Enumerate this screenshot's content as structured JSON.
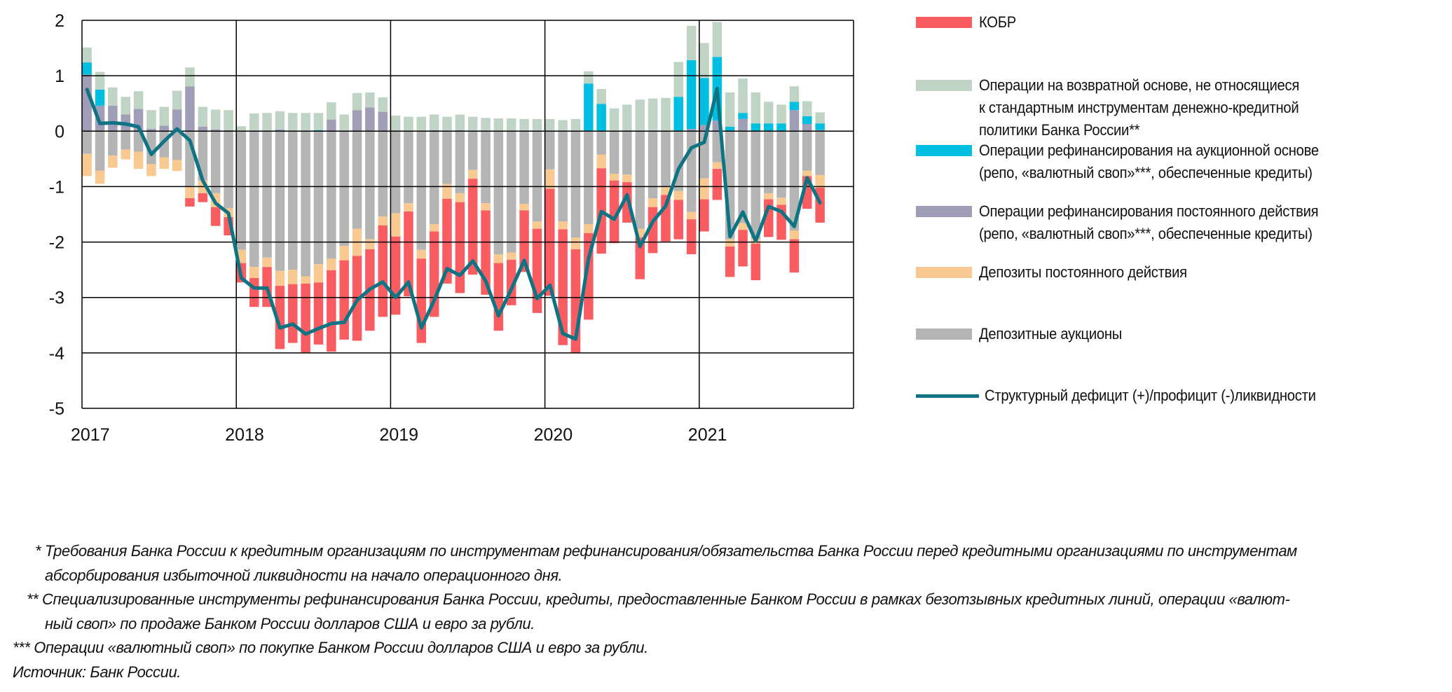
{
  "chart_data": {
    "type": "bar",
    "stacked": true,
    "title": "",
    "xlabel": "",
    "ylabel": "",
    "ylim": [
      -5,
      2
    ],
    "yticks": [
      "2",
      "1",
      "0",
      "-1",
      "-2",
      "-3",
      "-4",
      "-5"
    ],
    "ytick_values": [
      2,
      1,
      0,
      -1,
      -2,
      -3,
      -4,
      -5
    ],
    "xticks": [
      "2017",
      "2018",
      "2019",
      "2020",
      "2021"
    ],
    "grid": "horizontal and year separators",
    "legend_position": "right",
    "period": "monthly, Jan 2017 - Oct 2021",
    "series": [
      {
        "name": "КОБР",
        "color": "#f95c61",
        "kind": "bar-negative",
        "values": [
          0,
          0,
          0,
          0,
          0,
          0,
          0,
          0,
          -0.15,
          -0.16,
          -0.34,
          -0.33,
          -0.35,
          -0.52,
          -0.72,
          -1.14,
          -1.06,
          -1.24,
          -1.12,
          -1.47,
          -1.43,
          -1.53,
          -1.47,
          -1.65,
          -1.41,
          -1.53,
          -1.52,
          -1.54,
          -1.53,
          -1.64,
          -1.73,
          -1.52,
          -1.22,
          -0.82,
          -1.11,
          -1.52,
          -1.93,
          -2.09,
          -1.87,
          -1.56,
          -1.54,
          -1.13,
          -0.73,
          -0.75,
          -0.83,
          -0.84,
          -0.71,
          -0.63,
          -0.58,
          -0.56,
          -0.55,
          -0.66,
          -0.66,
          -0.68,
          -0.63,
          -0.6,
          -0.59,
          -0.63
        ]
      },
      {
        "name": "Депозиты постоянного действия",
        "color": "#f8c990",
        "kind": "bar-negative",
        "values": [
          -0.4,
          -0.24,
          -0.22,
          -0.18,
          -0.31,
          -0.22,
          -0.21,
          -0.2,
          -0.2,
          -0.23,
          -0.25,
          -0.16,
          -0.24,
          -0.2,
          -0.17,
          -0.27,
          -0.26,
          -0.13,
          -0.33,
          -0.21,
          -0.26,
          -0.49,
          -0.18,
          -0.16,
          -0.42,
          -0.15,
          -0.16,
          -0.13,
          -0.27,
          -0.16,
          -0.16,
          -0.13,
          -0.16,
          -0.13,
          -0.12,
          -0.13,
          -0.35,
          -0.14,
          -0.21,
          -0.16,
          -0.25,
          -0.12,
          -0.14,
          -0.16,
          -0.16,
          -0.15,
          -0.16,
          -0.13,
          -0.38,
          -0.12,
          -0.13,
          -0.12,
          -0.09,
          -0.11,
          -0.13,
          -0.16,
          -0.1,
          -0.23
        ]
      },
      {
        "name": "Депозитные аукционы",
        "color": "#b4b4b4",
        "kind": "bar-negative",
        "values": [
          -0.41,
          -0.71,
          -0.44,
          -0.33,
          -0.37,
          -0.59,
          -0.47,
          -0.52,
          -1.01,
          -0.89,
          -1.12,
          -1.39,
          -2.14,
          -2.45,
          -2.28,
          -2.52,
          -2.5,
          -2.62,
          -2.4,
          -2.3,
          -2.07,
          -1.76,
          -1.95,
          -1.54,
          -1.48,
          -1.3,
          -2.14,
          -1.68,
          -0.95,
          -1.12,
          -0.7,
          -1.3,
          -2.22,
          -2.19,
          -1.31,
          -1.63,
          -0.69,
          -1.63,
          -1.92,
          -1.68,
          -0.42,
          -0.77,
          -0.78,
          -1.76,
          -1.21,
          -1.0,
          -1.08,
          -1.46,
          -0.85,
          -0.56,
          -1.95,
          -1.66,
          -1.94,
          -1.12,
          -1.2,
          -1.79,
          -0.71,
          -0.79
        ]
      },
      {
        "name": "Операции рефинансирования постоянного действия (репо, «валютный своп»***, обеспеченные кредиты)",
        "color": "#a09db7",
        "kind": "bar-positive",
        "values": [
          1.02,
          0.46,
          0.46,
          0.3,
          0.4,
          0.04,
          0.1,
          0.39,
          0.81,
          0.08,
          0.03,
          0.02,
          0.01,
          0.01,
          0.01,
          0.03,
          0.01,
          0.01,
          0.0,
          0.21,
          0.01,
          0.38,
          0.43,
          0.35,
          0.01,
          0.01,
          0.01,
          0.02,
          0.01,
          0.02,
          0.01,
          0.01,
          0.01,
          0.01,
          0.01,
          0.01,
          0.01,
          0.01,
          0.01,
          0.0,
          0.0,
          0.01,
          0.01,
          0.01,
          0.01,
          0.01,
          0.0,
          0.04,
          0.11,
          0.19,
          0.0,
          0.22,
          0.0,
          0.0,
          0.0,
          0.38,
          0.13,
          0.02
        ]
      },
      {
        "name": "Операции рефинансирования на аукционной основе (репо, «валютный своп»***, обеспеченные кредиты)",
        "color": "#00bfe0",
        "kind": "bar-positive",
        "values": [
          0.22,
          0.29,
          0,
          0,
          0,
          0,
          0,
          0,
          0,
          0,
          0,
          0,
          0,
          0,
          0,
          0,
          0,
          0,
          0.02,
          0,
          0,
          0,
          0,
          0,
          0,
          0,
          0,
          0,
          0,
          0,
          0,
          0,
          0,
          0,
          0,
          0,
          0,
          0,
          0,
          0.86,
          0.49,
          0,
          0,
          0,
          0,
          0,
          0.62,
          1.24,
          0.85,
          1.15,
          0.08,
          0.11,
          0.14,
          0.14,
          0.14,
          0.15,
          0.14,
          0.12
        ]
      },
      {
        "name": "Операции на возвратной основе, не относящиеся к стандартным инструментам денежно-кредитной политики Банка России**",
        "color": "#bfd4c5",
        "kind": "bar-positive",
        "values": [
          0.27,
          0.32,
          0.33,
          0.32,
          0.32,
          0.34,
          0.34,
          0.34,
          0.34,
          0.36,
          0.36,
          0.36,
          0.08,
          0.31,
          0.32,
          0.33,
          0.32,
          0.32,
          0.31,
          0.31,
          0.29,
          0.31,
          0.27,
          0.26,
          0.27,
          0.25,
          0.25,
          0.28,
          0.25,
          0.28,
          0.25,
          0.23,
          0.22,
          0.22,
          0.21,
          0.21,
          0.21,
          0.19,
          0.21,
          0.22,
          0.27,
          0.4,
          0.47,
          0.56,
          0.58,
          0.59,
          0.63,
          0.62,
          0.63,
          0.63,
          0.62,
          0.62,
          0.56,
          0.39,
          0.34,
          0.28,
          0.27,
          0.2
        ]
      },
      {
        "name": "Структурный дефицит (+)/профицит (-)ликвидности",
        "color": "#0e7382",
        "kind": "line",
        "values": [
          0.75,
          0.14,
          0.15,
          0.13,
          0.08,
          -0.42,
          -0.18,
          0.04,
          -0.17,
          -0.89,
          -1.3,
          -1.48,
          -2.65,
          -2.83,
          -2.83,
          -3.55,
          -3.48,
          -3.66,
          -3.56,
          -3.47,
          -3.45,
          -3.05,
          -2.85,
          -2.72,
          -3.0,
          -2.72,
          -3.55,
          -3.05,
          -2.48,
          -2.6,
          -2.34,
          -2.7,
          -3.33,
          -2.85,
          -2.33,
          -3.02,
          -2.78,
          -3.65,
          -3.75,
          -2.3,
          -1.45,
          -1.59,
          -1.15,
          -2.08,
          -1.63,
          -1.35,
          -0.68,
          -0.3,
          -0.2,
          0.77,
          -1.9,
          -1.46,
          -1.98,
          -1.36,
          -1.45,
          -1.72,
          -0.84,
          -1.29
        ]
      }
    ]
  },
  "legend": [
    {
      "label": "КОБР",
      "color": "#f95c61",
      "type": "bar"
    },
    {
      "label": "Операции на возвратной основе, не относящиеся\nк стандартным инструментам денежно-кредитной\nполитики Банка России**",
      "color": "#bfd4c5",
      "type": "bar"
    },
    {
      "label": "Операции рефинансирования на аукционной основе\n(репо, «валютный своп»***, обеспеченные кредиты)",
      "color": "#00bfe0",
      "type": "bar"
    },
    {
      "label": "Операции рефинансирования постоянного действия\n(репо, «валютный своп»***, обеспеченные кредиты)",
      "color": "#a09db7",
      "type": "bar"
    },
    {
      "label": "Депозиты постоянного действия",
      "color": "#f8c990",
      "type": "bar"
    },
    {
      "label": "Депозитные аукционы",
      "color": "#b4b4b4",
      "type": "bar"
    },
    {
      "label": "Структурный дефицит (+)/профицит (-)ликвидности",
      "color": "#0e7382",
      "type": "line"
    }
  ],
  "footnotes": {
    "f1_line1": "* Требования Банка России к кредитным организациям по инструментам рефинансирования/обязательства Банка России перед кредитными организациями по инструментам",
    "f1_line2": "абсорбирования избыточной ликвидности на начало операционного дня.",
    "f2_line1": "** Специализированные инструменты рефинансирования Банка России, кредиты, предоставленные Банком России в рамках безотзывных кредитных линий, операции «валют-",
    "f2_line2": "ный своп» по продаже Банком России долларов США и евро за рубли.",
    "f3": "*** Операции «валютный своп» по покупке Банком России долларов США и евро за рубли.",
    "source": "Источник: Банк России."
  }
}
